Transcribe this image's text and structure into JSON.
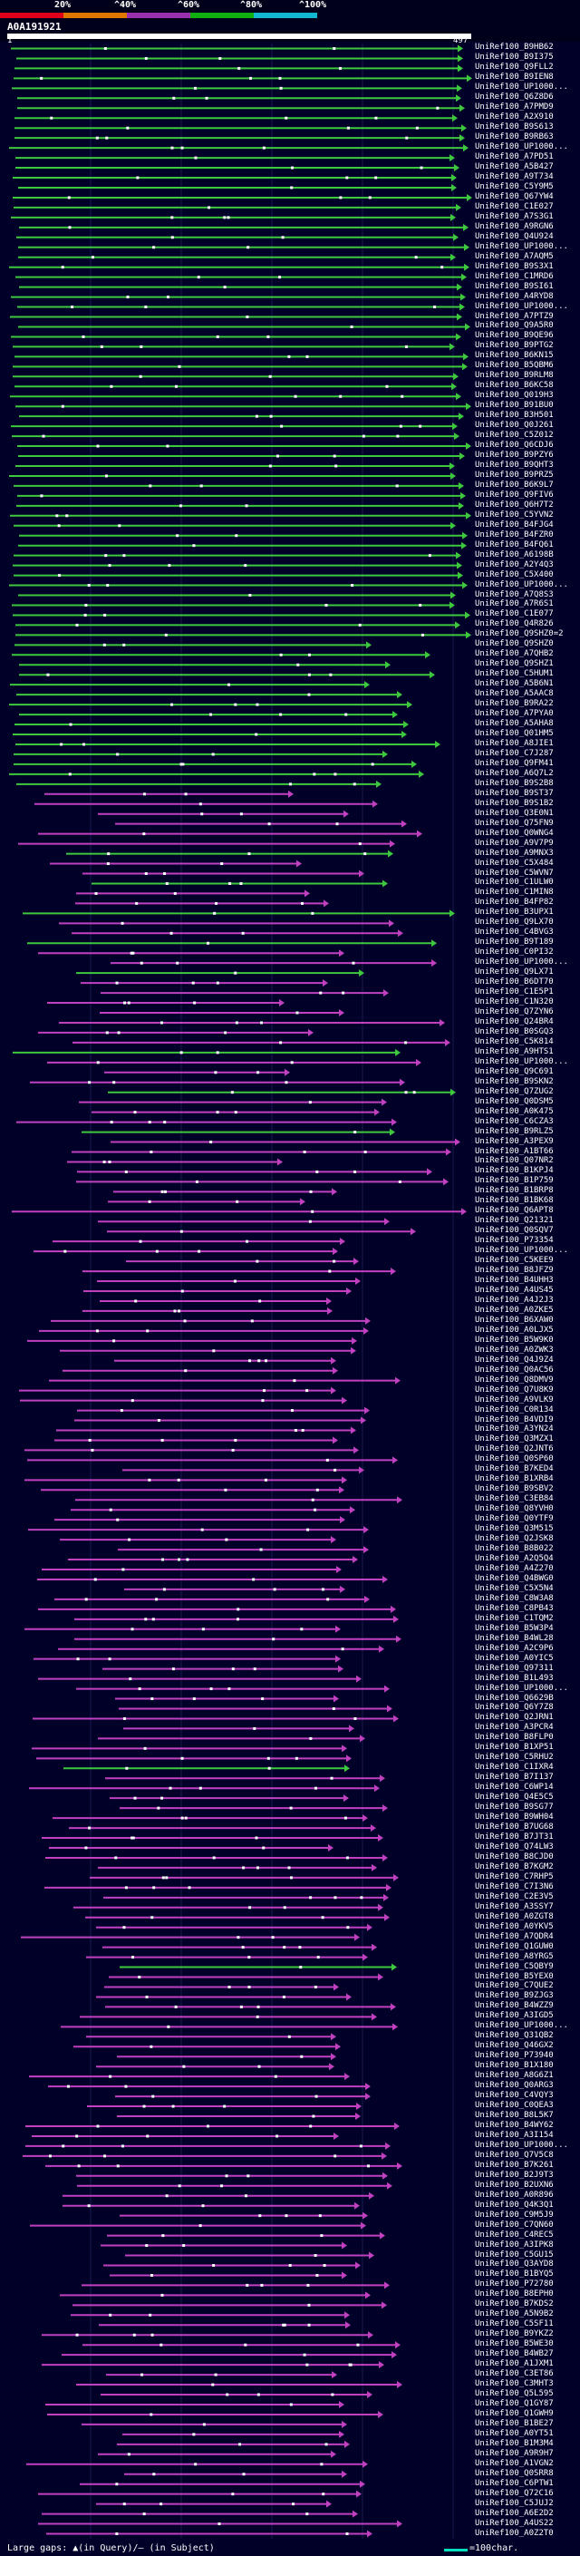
{
  "header": {
    "query_name": "A0A191921",
    "query_start": "1",
    "query_end": "497",
    "identity_ticks": [
      "20%",
      "^40%",
      "^60%",
      "^80%",
      "^100%"
    ],
    "identity_colors": [
      "#e0001a",
      "#e07800",
      "#9a2fb0",
      "#0fb00f",
      "#12b8d0"
    ]
  },
  "colors": {
    "high_identity": "#3ec83e",
    "mid_identity": "#c040c0",
    "query_bar": "#ffffff",
    "background": "#000028"
  },
  "hits": [
    "UniRef100_B9HB62",
    "UniRef100_B9I375",
    "UniRef100_Q9FLL2",
    "UniRef100_B9IEN8",
    "UniRef100_UP1000...",
    "UniRef100_Q6Z8D6",
    "UniRef100_A7PMD9",
    "UniRef100_A2X910",
    "UniRef100_B9S613",
    "UniRef100_B9RB63",
    "UniRef100_UP1000...",
    "UniRef100_A7PD51",
    "UniRef100_A5B427",
    "UniRef100_A9T734",
    "UniRef100_C5Y9M5",
    "UniRef100_Q67YW4",
    "UniRef100_C1E027",
    "UniRef100_A7S3G1",
    "UniRef100_A9RGN6",
    "UniRef100_Q4U924",
    "UniRef100_UP1000...",
    "UniRef100_A7AQM5",
    "UniRef100_B9S3X1",
    "UniRef100_C1MRD6",
    "UniRef100_B9SI61",
    "UniRef100_A4RYD8",
    "UniRef100_UP1000...",
    "UniRef100_A7PTZ9",
    "UniRef100_Q9A5R0",
    "UniRef100_B9QE96",
    "UniRef100_B9PTG2",
    "UniRef100_B6KN15",
    "UniRef100_B5QBM6",
    "UniRef100_B9RLM8",
    "UniRef100_B6KC58",
    "UniRef100_Q019H3",
    "UniRef100_B91BU0",
    "UniRef100_B3H501",
    "UniRef100_Q0J261",
    "UniRef100_C5Z012",
    "UniRef100_Q6CDJ6",
    "UniRef100_B9PZY6",
    "UniRef100_B9QHT3",
    "UniRef100_B9PRZ5",
    "UniRef100_B6K9L7",
    "UniRef100_Q9FIV6",
    "UniRef100_Q6H7T2",
    "UniRef100_C5YVN2",
    "UniRef100_B4FJG4",
    "UniRef100_B4FZR0",
    "UniRef100_B4FQ61",
    "UniRef100_A6198B",
    "UniRef100_A2Y4Q3",
    "UniRef100_C5X400",
    "UniRef100_UP1000...",
    "UniRef100_A7Q8S3",
    "UniRef100_A7R6S1",
    "UniRef100_C1E077",
    "UniRef100_Q4R826",
    "UniRef100_Q9SHZ0=2",
    "UniRef100_Q9SHZ0",
    "UniRef100_A7QHB2",
    "UniRef100_Q9SHZ1",
    "UniRef100_C5HUM1",
    "UniRef100_A5B6N1",
    "UniRef100_A5AAC8",
    "UniRef100_B9RA22",
    "UniRef100_A7PYA0",
    "UniRef100_A5AHA8",
    "UniRef100_Q01HM5",
    "UniRef100_A8JIE1",
    "UniRef100_C7J287",
    "UniRef100_Q9FM41",
    "UniRef100_A6Q7L2",
    "UniRef100_B9S2B8",
    "UniRef100_B9ST37",
    "UniRef100_B9S1B2",
    "UniRef100_Q3E0N1",
    "UniRef100_Q75FN9",
    "UniRef100_Q0WNG4",
    "UniRef100_A9V7P9",
    "UniRef100_A9MNX3",
    "UniRef100_C5X484",
    "UniRef100_C5WVN7",
    "UniRef100_C1ULW0",
    "UniRef100_C1MIN8",
    "UniRef100_B4FP82",
    "UniRef100_B3UPX1",
    "UniRef100_Q9LX70",
    "UniRef100_C4BVG3",
    "UniRef100_B9T189",
    "UniRef100_C0PI32",
    "UniRef100_UP1000...",
    "UniRef100_Q9LX71",
    "UniRef100_B6DT70",
    "UniRef100_C1E5P1",
    "UniRef100_C1N320",
    "UniRef100_Q7ZYN6",
    "UniRef100_Q24BR4",
    "UniRef100_B0SGQ3",
    "UniRef100_C5K814",
    "UniRef100_A9HTS1",
    "UniRef100_UP1000...",
    "UniRef100_Q9C691",
    "UniRef100_B9SKN2",
    "UniRef100_Q7ZUG2",
    "UniRef100_Q0DSM5",
    "UniRef100_A0K475",
    "UniRef100_C6CZA3",
    "UniRef100_B9RLZ5",
    "UniRef100_A3PEX9",
    "UniRef100_A1BT66",
    "UniRef100_Q07NR2",
    "UniRef100_B1KPJ4",
    "UniRef100_B1P759",
    "UniRef100_B1BRP8",
    "UniRef100_B1BK68",
    "UniRef100_Q6APT8",
    "UniRef100_Q21321",
    "UniRef100_Q0SQV7",
    "UniRef100_P73354",
    "UniRef100_UP1000...",
    "UniRef100_C5KEE9",
    "UniRef100_B8JFZ9",
    "UniRef100_B4UHH3",
    "UniRef100_A4US45",
    "UniRef100_A4J2J3",
    "UniRef100_A0ZKE5",
    "UniRef100_B6XAW0",
    "UniRef100_A0LJX5",
    "UniRef100_B5W9K0",
    "UniRef100_A0ZWK3",
    "UniRef100_Q4J9Z4",
    "UniRef100_Q0AC56",
    "UniRef100_Q8DMV9",
    "UniRef100_Q7U8K9",
    "UniRef100_A9VLK9",
    "UniRef100_C0R134",
    "UniRef100_B4VDI9",
    "UniRef100_A3YN24",
    "UniRef100_Q3MZX1",
    "UniRef100_Q2JNT6",
    "UniRef100_Q0SP60",
    "UniRef100_B7KED4",
    "UniRef100_B1XRB4",
    "UniRef100_B9SBV2",
    "UniRef100_C3EB84",
    "UniRef100_Q8YVH0",
    "UniRef100_Q0YTF9",
    "UniRef100_Q3M515",
    "UniRef100_Q2JSK8",
    "UniRef100_B8B022",
    "UniRef100_A2Q5Q4",
    "UniRef100_A4Z270",
    "UniRef100_Q4BWG0",
    "UniRef100_C5X5N4",
    "UniRef100_C8W3A8",
    "UniRef100_C8PB43",
    "UniRef100_C1TQM2",
    "UniRef100_B5W3P4",
    "UniRef100_B4WL28",
    "UniRef100_A2C9P6",
    "UniRef100_A0YIC5",
    "UniRef100_Q97311",
    "UniRef100_B1L493",
    "UniRef100_UP1000...",
    "UniRef100_Q6629B",
    "UniRef100_Q6Y7Z8",
    "UniRef100_Q2JRN1",
    "UniRef100_A3PCR4",
    "UniRef100_B8FLP0",
    "UniRef100_B1XP51",
    "UniRef100_C5RHU2",
    "UniRef100_C1IXR4",
    "UniRef100_B7I137",
    "UniRef100_C6WP14",
    "UniRef100_Q4E5C5",
    "UniRef100_B9SG77",
    "UniRef100_B9WH04",
    "UniRef100_B7UG68",
    "UniRef100_B7JT31",
    "UniRef100_Q74LW3",
    "UniRef100_B8CJD0",
    "UniRef100_B7KGM2",
    "UniRef100_C7RHP5",
    "UniRef100_C7I3N6",
    "UniRef100_C2E3V5",
    "UniRef100_A3SSY7",
    "UniRef100_A0ZGT8",
    "UniRef100_A0YKV5",
    "UniRef100_A7QDR4",
    "UniRef100_Q1GUW0",
    "UniRef100_A8YRG5",
    "UniRef100_C5QBY9",
    "UniRef100_B5YEX0",
    "UniRef100_C7QUE2",
    "UniRef100_B9ZJG3",
    "UniRef100_B4WZZ9",
    "UniRef100_A3IGD5",
    "UniRef100_UP1000...",
    "UniRef100_Q31QB2",
    "UniRef100_Q46GX2",
    "UniRef100_P73940",
    "UniRef100_B1X180",
    "UniRef100_A8G6Z1",
    "UniRef100_Q0ARG3",
    "UniRef100_C4VQY3",
    "UniRef100_C0QEA3",
    "UniRef100_B8L5K7",
    "UniRef100_B4WY62",
    "UniRef100_A3I154",
    "UniRef100_UP1000...",
    "UniRef100_Q7V5C8",
    "UniRef100_B7K261",
    "UniRef100_B2J9T3",
    "UniRef100_B2UXN6",
    "UniRef100_A0R896",
    "UniRef100_Q4K3Q1",
    "UniRef100_C9M5J9",
    "UniRef100_C7QN60",
    "UniRef100_C4REC5",
    "UniRef100_A3IPK8",
    "UniRef100_C5GU15",
    "UniRef100_Q3AYD8",
    "UniRef100_B1BYQ5",
    "UniRef100_P72780",
    "UniRef100_B8EPH0",
    "UniRef100_B7KDS2",
    "UniRef100_A5N9B2",
    "UniRef100_C5SF11",
    "UniRef100_B9YKZ2",
    "UniRef100_B5WE30",
    "UniRef100_B4WB27",
    "UniRef100_A1JXM1",
    "UniRef100_C3ET86",
    "UniRef100_C3MHT3",
    "UniRef100_Q5L595",
    "UniRef100_Q1GY87",
    "UniRef100_Q1GWH9",
    "UniRef100_B1BE27",
    "UniRef100_A0YT51",
    "UniRef100_B1M3M4",
    "UniRef100_A9R9H7",
    "UniRef100_A1VGN2",
    "UniRef100_Q0SRR8",
    "UniRef100_C6PTW1",
    "UniRef100_Q72C16",
    "UniRef100_C5JUJ2",
    "UniRef100_A6E2D2",
    "UniRef100_A4US22",
    "UniRef100_A0Z2T0"
  ],
  "footer": {
    "gaps_text": "Large gaps: ▲(in Query)/— (in Subject)",
    "scale_text": "=100char."
  }
}
